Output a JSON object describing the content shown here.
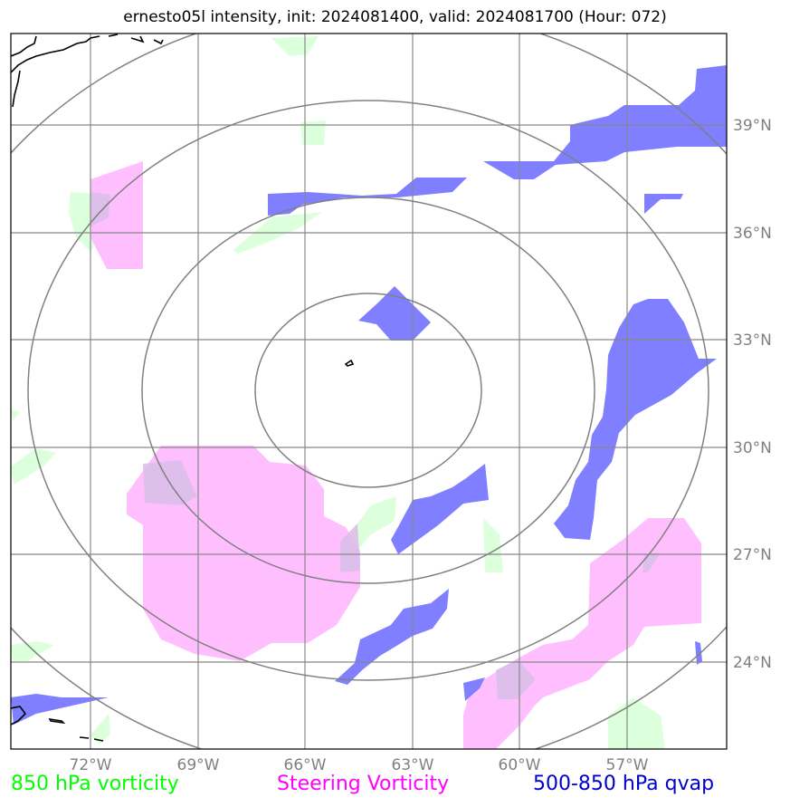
{
  "title": "ernesto05l intensity, init: 2024081400, valid: 2024081700 (Hour: 072)",
  "lon_labels": [
    "72°W",
    "69°W",
    "66°W",
    "63°W",
    "60°W",
    "57°W"
  ],
  "lat_labels": [
    "39°N",
    "36°N",
    "33°N",
    "30°N",
    "27°N",
    "24°N"
  ],
  "legend": {
    "green": "850 hPa vorticity",
    "magenta": "Steering Vorticity",
    "blue": "500-850 hPa qvap"
  },
  "colors": {
    "green": "#00ff00",
    "magenta": "#ff00ff",
    "blue": "#0000cc",
    "green_fill": "#dcffdc",
    "magenta_fill": "#ffbfff",
    "blue_fill": "#7f7fff",
    "grid": "#888888",
    "range_rings": "#808080"
  },
  "range_rings": 4
}
